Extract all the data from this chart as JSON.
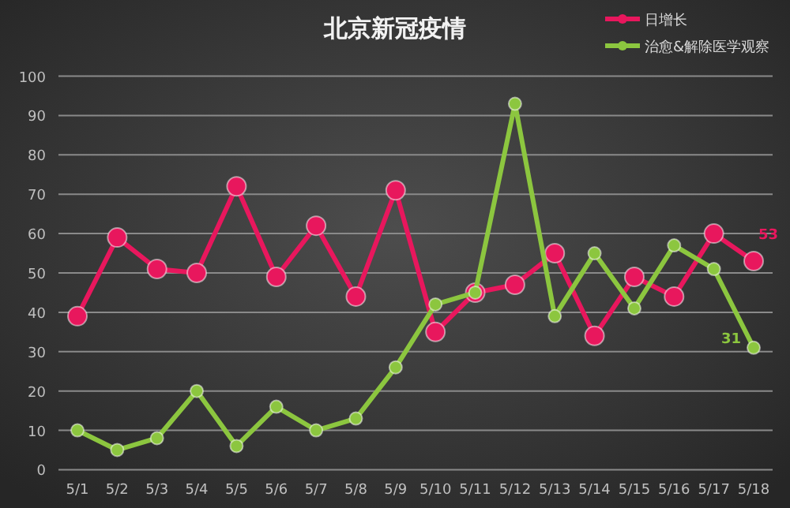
{
  "chart_data": {
    "type": "line",
    "title": "北京新冠疫情",
    "categories": [
      "5/1",
      "5/2",
      "5/3",
      "5/4",
      "5/5",
      "5/6",
      "5/7",
      "5/8",
      "5/9",
      "5/10",
      "5/11",
      "5/12",
      "5/13",
      "5/14",
      "5/15",
      "5/16",
      "5/17",
      "5/18"
    ],
    "series": [
      {
        "name": "日增长",
        "color": "#e8175d",
        "values": [
          39,
          59,
          51,
          50,
          72,
          49,
          62,
          44,
          71,
          35,
          45,
          47,
          55,
          34,
          49,
          44,
          60,
          53
        ],
        "value_labels": [
          null,
          null,
          null,
          null,
          null,
          null,
          null,
          null,
          null,
          null,
          null,
          null,
          null,
          null,
          null,
          null,
          null,
          "53"
        ]
      },
      {
        "name": "治愈&解除医学观察",
        "color": "#8cc63f",
        "values": [
          10,
          5,
          8,
          20,
          6,
          16,
          10,
          13,
          26,
          42,
          45,
          93,
          39,
          55,
          41,
          57,
          51,
          31
        ],
        "value_labels": [
          null,
          null,
          null,
          null,
          null,
          null,
          null,
          null,
          null,
          null,
          null,
          null,
          null,
          null,
          null,
          null,
          null,
          "31"
        ]
      }
    ],
    "ylim": [
      0,
      100
    ],
    "yticks": [
      0,
      10,
      20,
      30,
      40,
      50,
      60,
      70,
      80,
      90,
      100
    ],
    "grid": "y",
    "legend": "top right",
    "marker": "circle"
  }
}
